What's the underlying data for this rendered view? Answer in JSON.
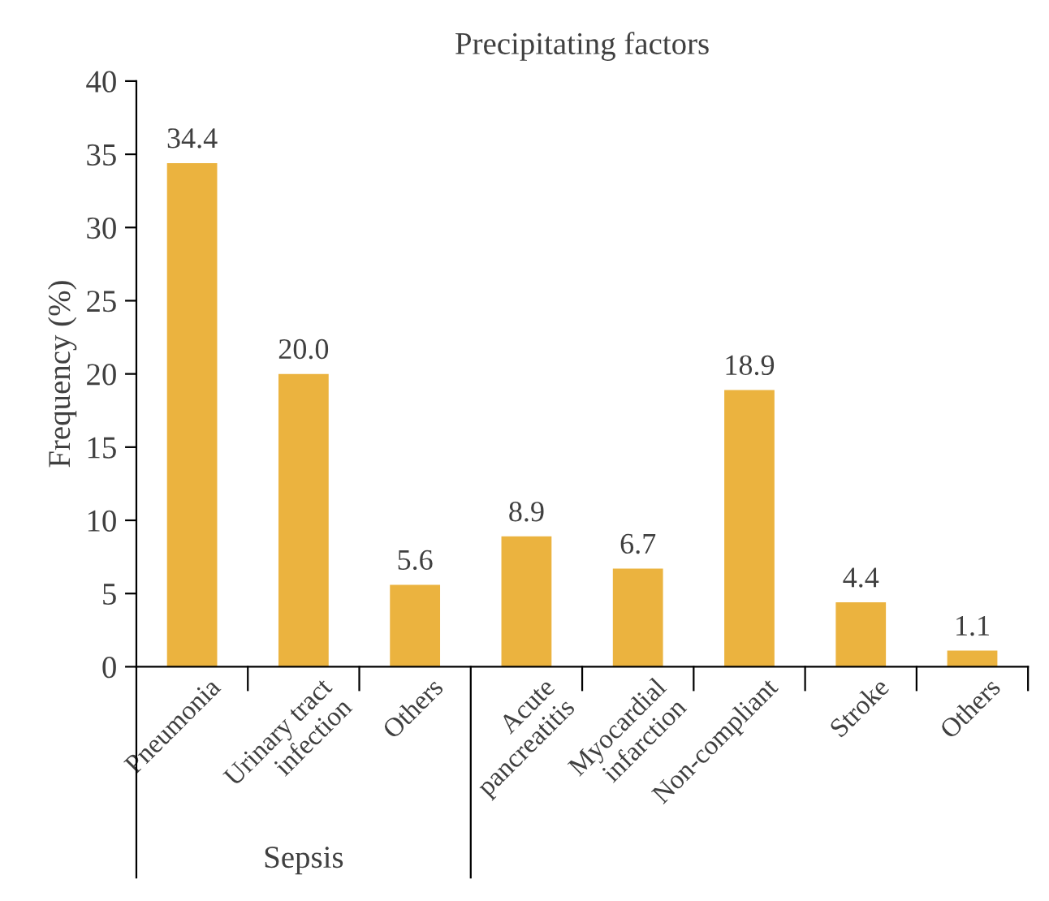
{
  "chart_data": {
    "type": "bar",
    "title": "Precipitating factors",
    "ylabel": "Frequency (%)",
    "categories": [
      "Pneumonia",
      "Urinary tract\ninfection",
      "Others",
      "Acute\npancreatitis",
      "Myocardial\ninfarction",
      "Non-compliant",
      "Stroke",
      "Others"
    ],
    "values": [
      34.4,
      20.0,
      5.6,
      8.9,
      6.7,
      18.9,
      4.4,
      1.1
    ],
    "value_labels": [
      "34.4",
      "20.0",
      "5.6",
      "8.9",
      "6.7",
      "18.9",
      "4.4",
      "1.1"
    ],
    "color": "#ebb33f",
    "ylim": [
      0,
      40
    ],
    "yticks": [
      0,
      5,
      10,
      15,
      20,
      25,
      30,
      35,
      40
    ],
    "grid": false,
    "legend": false,
    "annotations": [
      "Sepsis"
    ]
  }
}
